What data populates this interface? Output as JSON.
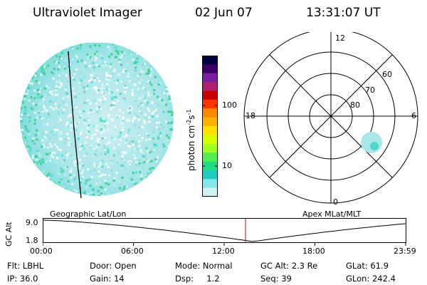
{
  "header": {
    "instrument": "Ultraviolet Imager",
    "date": "02 Jun 07",
    "time": "13:31:07 UT"
  },
  "colorbar": {
    "label": "photon cm",
    "label_sup1": "-2",
    "label_mid": "s",
    "label_sup2": "-1",
    "ticks": [
      "100",
      "10"
    ],
    "colors": [
      "#000040",
      "#3a0066",
      "#7a1fa0",
      "#b02070",
      "#cc0000",
      "#ff3300",
      "#ff8800",
      "#ffb000",
      "#ffe000",
      "#d8ff00",
      "#a0ff20",
      "#50ee50",
      "#20dd80",
      "#20ccc0",
      "#80e8e8",
      "#d0f4f4"
    ]
  },
  "left_panel": {
    "caption": "Geographic Lat/Lon"
  },
  "right_panel": {
    "caption": "Apex MLat/MLT",
    "mlt_labels": {
      "top": "12",
      "left": "18",
      "right": "6",
      "bottom": "0"
    },
    "lat_labels": [
      "60",
      "70",
      "80"
    ]
  },
  "timeline": {
    "ylabel": "GC Alt",
    "y_ticks": [
      "9.0",
      "1.8"
    ],
    "x_ticks": [
      "00:00",
      "06:00",
      "12:00",
      "18:00",
      "23:59"
    ],
    "marker_color": "#cc0000"
  },
  "info_rows": [
    [
      "Flt: LBHL",
      "Door: Open",
      "Mode: Normal",
      "GC Alt: 2.3 Re",
      "GLat: 61.9"
    ],
    [
      "IP: 36.0",
      "Gain: 14",
      "Dsp:     1.2",
      "Seq: 39",
      "GLon: 242.4"
    ]
  ]
}
